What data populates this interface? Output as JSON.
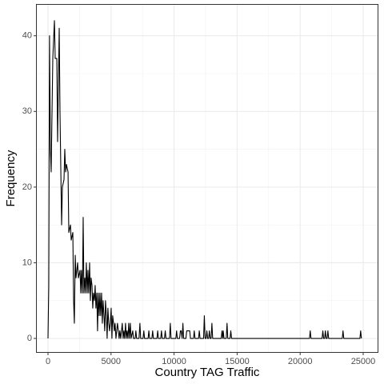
{
  "chart_data": {
    "type": "line",
    "x_label": "Country TAG Traffic",
    "y_label": "Frequency",
    "xlim": [
      -952,
      26206
    ],
    "ylim": [
      -1.9,
      44.2
    ],
    "xticks": [
      0,
      5000,
      10000,
      15000,
      20000,
      25000
    ],
    "yticks": [
      0,
      10,
      20,
      30,
      40
    ],
    "grid": true,
    "color": "#000000",
    "x": [
      0,
      60,
      120,
      190,
      250,
      380,
      510,
      570,
      700,
      760,
      890,
      950,
      1080,
      1140,
      1270,
      1330,
      1400,
      1460,
      1590,
      1650,
      1780,
      1840,
      1970,
      2030,
      2090,
      2160,
      2220,
      2350,
      2410,
      2540,
      2600,
      2660,
      2730,
      2790,
      2850,
      2920,
      2980,
      3040,
      3110,
      3170,
      3230,
      3300,
      3360,
      3420,
      3490,
      3550,
      3610,
      3680,
      3740,
      3800,
      3870,
      3930,
      3990,
      4060,
      4120,
      4180,
      4250,
      4310,
      4370,
      4440,
      4500,
      4560,
      4630,
      4690,
      4750,
      4820,
      4880,
      4940,
      5010,
      5070,
      5130,
      5200,
      5260,
      5320,
      5390,
      5450,
      5510,
      5580,
      5640,
      5700,
      5770,
      5830,
      5890,
      5960,
      6020,
      6080,
      6150,
      6210,
      6270,
      6340,
      6400,
      6460,
      6530,
      6590,
      6720,
      6780,
      6910,
      6970,
      7030,
      7220,
      7290,
      7350,
      7540,
      7600,
      7660,
      7940,
      8000,
      8060,
      8240,
      8300,
      8360,
      8640,
      8700,
      8760,
      8940,
      9000,
      9060,
      9240,
      9300,
      9360,
      9640,
      9700,
      9760,
      10140,
      10200,
      10260,
      10440,
      10500,
      10560,
      10640,
      10700,
      10760,
      10940,
      11000,
      11060,
      11240,
      11300,
      11540,
      11600,
      11660,
      11940,
      12000,
      12060,
      12340,
      12400,
      12460,
      12540,
      12600,
      12660,
      12740,
      12800,
      12860,
      12940,
      13000,
      13060,
      13740,
      13800,
      13860,
      13900,
      13960,
      14140,
      14200,
      14260,
      14440,
      14500,
      14560,
      20740,
      20800,
      20860,
      21740,
      21800,
      21860,
      21940,
      22000,
      22060,
      22140,
      22200,
      22260,
      23340,
      23400,
      23460,
      24740,
      24800,
      24860
    ],
    "values": [
      0,
      7,
      40,
      25,
      22,
      37,
      42,
      37,
      37,
      26,
      41,
      30,
      15,
      20,
      21,
      25,
      22,
      23,
      22,
      14,
      15,
      13,
      14,
      5,
      2,
      11,
      8,
      10,
      8,
      9,
      6,
      9,
      6,
      16,
      6,
      8,
      6,
      10,
      6,
      9,
      6,
      10,
      5,
      8,
      7,
      4,
      6,
      5,
      7,
      4,
      6,
      1,
      6,
      3,
      6,
      3,
      6,
      2,
      5,
      3,
      1,
      5,
      3,
      0,
      4,
      2,
      1,
      2,
      4,
      0,
      3,
      2,
      1,
      2,
      0,
      1,
      2,
      1,
      0,
      1,
      0,
      1,
      2,
      0,
      1,
      0,
      2,
      0,
      1,
      0,
      2,
      0,
      2,
      0,
      1,
      0,
      0,
      1,
      0,
      0,
      2,
      0,
      0,
      1,
      0,
      0,
      1,
      0,
      0,
      1,
      0,
      0,
      1,
      0,
      0,
      1,
      0,
      0,
      1,
      0,
      0,
      2,
      0,
      0,
      1,
      0,
      0,
      1,
      1,
      0,
      2,
      0,
      0,
      1,
      1,
      1,
      0,
      0,
      1,
      0,
      0,
      1,
      0,
      0,
      3,
      0,
      0,
      1,
      0,
      0,
      1,
      0,
      0,
      2,
      0,
      0,
      1,
      0,
      1,
      0,
      0,
      2,
      0,
      0,
      1,
      0,
      0,
      1,
      0,
      0,
      1,
      0,
      0,
      1,
      0,
      0,
      1,
      0,
      0,
      1,
      0,
      0,
      1,
      0
    ]
  }
}
